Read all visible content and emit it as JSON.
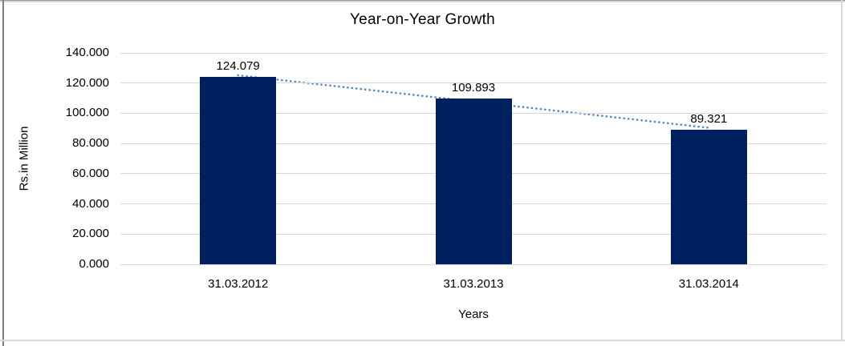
{
  "chart_data": {
    "type": "bar",
    "title": "Year-on-Year Growth",
    "categories": [
      "31.03.2012",
      "31.03.2013",
      "31.03.2014"
    ],
    "values": [
      124.079,
      109.893,
      89.321
    ],
    "data_labels": [
      "124.079",
      "109.893",
      "89.321"
    ],
    "xlabel": "Years",
    "ylabel": "Rs.in Million",
    "ylim": [
      0,
      140
    ],
    "ytick_step": 20,
    "ytick_labels": [
      "0.000",
      "20.000",
      "40.000",
      "60.000",
      "80.000",
      "100.000",
      "120.000",
      "140.000"
    ],
    "grid": true,
    "legend": "none",
    "bar_color": "#002060",
    "gridline_color": "#d9d9d9",
    "text_color": "#000000",
    "trendline": {
      "type": "linear",
      "style": "dotted",
      "color": "#4a86c8",
      "start_value": 125.143,
      "end_value": 90.385
    }
  }
}
